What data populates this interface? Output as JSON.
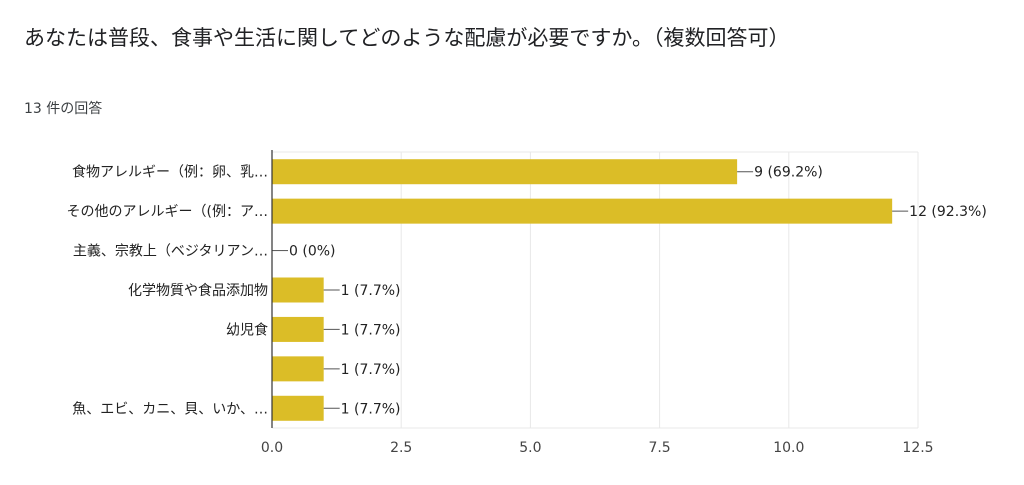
{
  "question": {
    "title": "あなたは普段、食事や生活に関してどのような配慮が必要ですか。（複数回答可）",
    "response_count": "13 件の回答"
  },
  "colors": {
    "bar": "#dbbd27",
    "grid": "#e8e8e8",
    "axis": "#333333"
  },
  "chart_data": {
    "type": "bar",
    "orientation": "horizontal",
    "title": "あなたは普段、食事や生活に関してどのような配慮が必要ですか。（複数回答可）",
    "categories": [
      "食物アレルギー（例：卵、乳…",
      "その他のアレルギー（(例：ア…",
      "主義、宗教上（ベジタリアン…",
      "化学物質や食品添加物",
      "幼児食",
      "",
      "魚、エビ、カニ、貝、いか、…"
    ],
    "values": [
      9,
      12,
      0,
      1,
      1,
      1,
      1
    ],
    "labels": [
      "9 (69.2%)",
      "12 (92.3%)",
      "0 (0%)",
      "1 (7.7%)",
      "1 (7.7%)",
      "1 (7.7%)",
      "1 (7.7%)"
    ],
    "xlim": [
      0,
      12.5
    ],
    "ticks": [
      "0.0",
      "2.5",
      "5.0",
      "7.5",
      "10.0",
      "12.5"
    ],
    "tick_values": [
      0,
      2.5,
      5,
      7.5,
      10,
      12.5
    ],
    "grid": true,
    "legend": "none"
  }
}
